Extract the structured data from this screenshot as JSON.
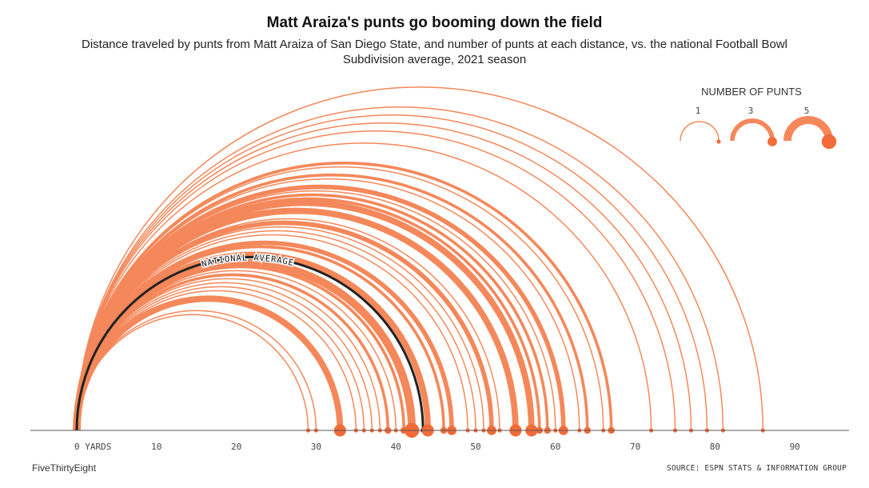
{
  "header": {
    "title": "Matt Araiza's punts go booming down the field",
    "subtitle": "Distance traveled by punts from Matt Araiza of San Diego State, and number of punts at each distance, vs. the national Football Bowl Subdivision average, 2021 season"
  },
  "footer": {
    "brand": "FiveThirtyEight",
    "source": "SOURCE: ESPN STATS & INFORMATION GROUP"
  },
  "legend": {
    "title": "NUMBER OF PUNTS",
    "levels": [
      {
        "label": "1",
        "count": 1
      },
      {
        "label": "3",
        "count": 3
      },
      {
        "label": "5",
        "count": 5
      }
    ]
  },
  "colors": {
    "arc": "#f4885a",
    "arc_dark": "#f26b38",
    "average": "#222222",
    "axis": "#555555"
  },
  "chart_data": {
    "type": "arc",
    "x_axis": {
      "min": 0,
      "max": 97,
      "ticks": [
        0,
        10,
        20,
        30,
        40,
        50,
        60,
        70,
        80,
        90
      ],
      "tick_labels": [
        "0 YARDS",
        "10",
        "20",
        "30",
        "40",
        "50",
        "60",
        "70",
        "80",
        "90"
      ]
    },
    "average": {
      "label": "NATIONAL AVERAGE",
      "distance": 43.4
    },
    "punts": [
      {
        "distance": 29,
        "count": 1
      },
      {
        "distance": 30,
        "count": 1
      },
      {
        "distance": 33,
        "count": 4
      },
      {
        "distance": 35,
        "count": 1
      },
      {
        "distance": 36,
        "count": 1
      },
      {
        "distance": 37,
        "count": 1
      },
      {
        "distance": 38,
        "count": 1
      },
      {
        "distance": 39,
        "count": 2
      },
      {
        "distance": 40,
        "count": 1
      },
      {
        "distance": 41,
        "count": 2
      },
      {
        "distance": 42,
        "count": 5
      },
      {
        "distance": 44,
        "count": 4
      },
      {
        "distance": 46,
        "count": 2
      },
      {
        "distance": 47,
        "count": 3
      },
      {
        "distance": 49,
        "count": 1
      },
      {
        "distance": 50,
        "count": 1
      },
      {
        "distance": 51,
        "count": 1
      },
      {
        "distance": 52,
        "count": 3
      },
      {
        "distance": 53,
        "count": 1
      },
      {
        "distance": 55,
        "count": 4
      },
      {
        "distance": 57,
        "count": 4
      },
      {
        "distance": 58,
        "count": 2
      },
      {
        "distance": 59,
        "count": 2
      },
      {
        "distance": 60,
        "count": 1
      },
      {
        "distance": 61,
        "count": 3
      },
      {
        "distance": 63,
        "count": 1
      },
      {
        "distance": 64,
        "count": 2
      },
      {
        "distance": 66,
        "count": 1
      },
      {
        "distance": 67,
        "count": 2
      },
      {
        "distance": 72,
        "count": 1
      },
      {
        "distance": 75,
        "count": 1
      },
      {
        "distance": 77,
        "count": 1
      },
      {
        "distance": 79,
        "count": 1
      },
      {
        "distance": 81,
        "count": 1
      },
      {
        "distance": 86,
        "count": 1
      }
    ]
  }
}
